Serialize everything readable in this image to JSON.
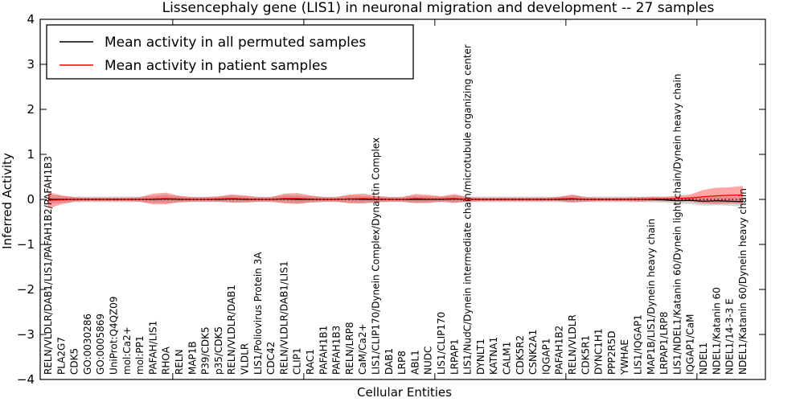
{
  "chart_data": {
    "type": "line",
    "title": "Lissencephaly gene (LIS1) in neuronal migration and development -- 27 samples",
    "xlabel": "Cellular Entities",
    "ylabel": "Inferred Activity",
    "ylim": [
      -4,
      4
    ],
    "yticks": [
      4,
      3,
      2,
      1,
      0,
      -1,
      -2,
      -3,
      -4
    ],
    "yticklabels": [
      "4",
      "3",
      "2",
      "1",
      "0",
      "−1",
      "−2",
      "−3",
      "−4"
    ],
    "xticks_numeric": [
      10,
      20,
      30,
      40,
      50
    ],
    "grid": false,
    "legend_position": "upper left",
    "zero_line": {
      "value": 0,
      "style": "dotted",
      "color": "#000000"
    },
    "categories": [
      "RELN/VLDLR/DAB1/LIS1/PAFAH1B2/PAFAH1B3",
      "PLA2G7",
      "CDK5",
      "GO:0030286",
      "GO:0005869",
      "UniProt:Q4QZ09",
      "mol:Ca2+",
      "mol:PP1",
      "PAFAH/LIS1",
      "RHOA",
      "RELN",
      "MAP1B",
      "P39/CDK5",
      "p35/CDK5",
      "RELN/VLDLR/DAB1",
      "VLDLR",
      "LIS1/Poliovirus Protein 3A",
      "CDC42",
      "RELN/VLDLR/DAB1/LIS1",
      "CLIP1",
      "RAC1",
      "PAFAH1B1",
      "PAFAH1B3",
      "RELN/LRP8",
      "CaM/Ca2+",
      "LIS1/CLIP170/Dynein Complex/Dynactin Complex",
      "DAB1",
      "LRP8",
      "ABL1",
      "NUDC",
      "LIS1/CLIP170",
      "LRPAP1",
      "LIS1/NudC/Dynein intermediate chain/microtubule organizing center",
      "DYNLT1",
      "KATNA1",
      "CALM1",
      "CDK5R2",
      "CSNK2A1",
      "IQGAP1",
      "PAFAH1B2",
      "RELN/VLDLR",
      "CDK5R1",
      "DYNC1H1",
      "PPP2R5D",
      "YWHAE",
      "LIS1/IQGAP1",
      "MAP1B/LIS1/Dynein heavy chain",
      "LRPAP1/LRP8",
      "LIS1/NDEL1/Katanin 60/Dynein light chain/Dynein heavy chain",
      "IQGAP1/CaM",
      "NDEL1",
      "NDEL1/Katanin 60",
      "NDEL1/14-3-3 E",
      "NDEL1/Katanin 60/Dynein heavy chain"
    ],
    "series": [
      {
        "name": "Mean activity in all permuted samples",
        "color": "#000000",
        "band_color": "#000000",
        "band_opacity": 0.16,
        "values": [
          0,
          0,
          0,
          0,
          0,
          0,
          0,
          0,
          0,
          0.01,
          0,
          0,
          0,
          0,
          0.01,
          0,
          0,
          0,
          0.01,
          0,
          0,
          0,
          0,
          0.01,
          0,
          0,
          0,
          0,
          0,
          0,
          0,
          0.01,
          0,
          0,
          0,
          0,
          0,
          0,
          0,
          0,
          0.01,
          0,
          0,
          0,
          0,
          0,
          0,
          -0.01,
          -0.03,
          -0.02,
          -0.04,
          -0.03,
          -0.04,
          -0.05
        ],
        "band_halfwidth": [
          0.1,
          0.08,
          0.06,
          0.06,
          0.06,
          0.06,
          0.06,
          0.06,
          0.08,
          0.09,
          0.07,
          0.06,
          0.06,
          0.06,
          0.08,
          0.07,
          0.06,
          0.06,
          0.08,
          0.09,
          0.07,
          0.06,
          0.06,
          0.08,
          0.08,
          0.07,
          0.06,
          0.06,
          0.08,
          0.07,
          0.06,
          0.08,
          0.06,
          0.06,
          0.06,
          0.06,
          0.06,
          0.06,
          0.06,
          0.06,
          0.08,
          0.06,
          0.06,
          0.06,
          0.06,
          0.06,
          0.06,
          0.06,
          0.07,
          0.08,
          0.1,
          0.1,
          0.1,
          0.11
        ]
      },
      {
        "name": "Mean activity in patient samples",
        "color": "#ff0000",
        "band_color": "#ff0000",
        "band_opacity": 0.35,
        "values": [
          -0.02,
          -0.01,
          0,
          0,
          0,
          0,
          0,
          0,
          0.01,
          0.02,
          0.01,
          0,
          0,
          0.01,
          0.02,
          0.01,
          0,
          0,
          0.02,
          0.02,
          0.01,
          0,
          0,
          0.01,
          0.02,
          0.01,
          0,
          0,
          0.02,
          0.01,
          0.01,
          0.02,
          0,
          0,
          0,
          0,
          0,
          0,
          0,
          0.01,
          0.02,
          0,
          0,
          0,
          0,
          0,
          0.01,
          0.01,
          0.02,
          0.03,
          0.06,
          0.08,
          0.09,
          0.1
        ],
        "band_halfwidth": [
          0.18,
          0.1,
          0.05,
          0.04,
          0.04,
          0.04,
          0.04,
          0.05,
          0.12,
          0.13,
          0.07,
          0.05,
          0.05,
          0.06,
          0.09,
          0.08,
          0.05,
          0.05,
          0.11,
          0.12,
          0.08,
          0.05,
          0.05,
          0.1,
          0.11,
          0.07,
          0.05,
          0.05,
          0.1,
          0.09,
          0.06,
          0.1,
          0.05,
          0.04,
          0.04,
          0.04,
          0.04,
          0.04,
          0.04,
          0.05,
          0.09,
          0.05,
          0.04,
          0.04,
          0.04,
          0.05,
          0.05,
          0.05,
          0.06,
          0.08,
          0.15,
          0.18,
          0.18,
          0.2
        ]
      }
    ]
  }
}
